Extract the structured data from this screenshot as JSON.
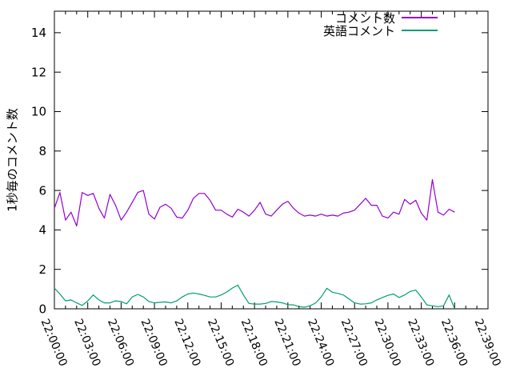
{
  "chart_data": {
    "type": "line",
    "title": "",
    "xlabel": "",
    "ylabel": "1秒毎のコメント数",
    "grid": false,
    "legend_position": "top-right-inside",
    "x_axis": {
      "labels": [
        "22:00:00",
        "22:03:00",
        "22:06:00",
        "22:09:00",
        "22:12:00",
        "22:15:00",
        "22:18:00",
        "22:21:00",
        "22:24:00",
        "22:27:00",
        "22:30:00",
        "22:33:00",
        "22:36:00",
        "22:39:00"
      ],
      "label_step_minutes": 3,
      "minor_tick_minutes": 1,
      "range_minutes": [
        0,
        39
      ],
      "label_rotation_deg": 67
    },
    "y_axis": {
      "ticks": [
        0,
        2,
        4,
        6,
        8,
        10,
        12,
        14
      ],
      "range": [
        0,
        15.09
      ]
    },
    "x_start_min": 0,
    "x_step_min": 0.5,
    "series": [
      {
        "name": "コメント数",
        "color": "#9400d3",
        "values": [
          5.1,
          5.9,
          4.5,
          4.9,
          4.2,
          5.9,
          5.75,
          5.85,
          5.1,
          4.6,
          5.8,
          5.25,
          4.5,
          4.9,
          5.4,
          5.9,
          6.0,
          4.8,
          4.55,
          5.15,
          5.3,
          5.1,
          4.65,
          4.6,
          5.0,
          5.6,
          5.85,
          5.85,
          5.5,
          5.0,
          5.0,
          4.8,
          4.65,
          5.05,
          4.9,
          4.7,
          5.0,
          5.4,
          4.8,
          4.7,
          5.0,
          5.3,
          5.45,
          5.1,
          4.85,
          4.7,
          4.75,
          4.7,
          4.8,
          4.7,
          4.75,
          4.7,
          4.85,
          4.9,
          5.0,
          5.3,
          5.6,
          5.25,
          5.25,
          4.7,
          4.6,
          4.9,
          4.8,
          5.55,
          5.3,
          5.5,
          4.85,
          4.5,
          6.55,
          4.9,
          4.75,
          5.05,
          4.9
        ]
      },
      {
        "name": "英語コメント",
        "color": "#009e73",
        "values": [
          1.05,
          0.75,
          0.4,
          0.45,
          0.3,
          0.17,
          0.4,
          0.7,
          0.45,
          0.3,
          0.3,
          0.4,
          0.37,
          0.25,
          0.6,
          0.73,
          0.6,
          0.37,
          0.3,
          0.33,
          0.35,
          0.3,
          0.4,
          0.6,
          0.75,
          0.8,
          0.75,
          0.68,
          0.6,
          0.6,
          0.7,
          0.85,
          1.05,
          1.2,
          0.7,
          0.27,
          0.24,
          0.24,
          0.27,
          0.37,
          0.35,
          0.3,
          0.21,
          0.2,
          0.11,
          0.08,
          0.15,
          0.3,
          0.6,
          1.04,
          0.84,
          0.78,
          0.7,
          0.5,
          0.3,
          0.24,
          0.25,
          0.3,
          0.45,
          0.57,
          0.68,
          0.75,
          0.57,
          0.7,
          0.88,
          0.95,
          0.6,
          0.2,
          0.15,
          0.11,
          0.15,
          0.7,
          0.0
        ]
      }
    ],
    "colors": {
      "axis": "#000000",
      "background": "#ffffff",
      "text": "#000000"
    }
  }
}
